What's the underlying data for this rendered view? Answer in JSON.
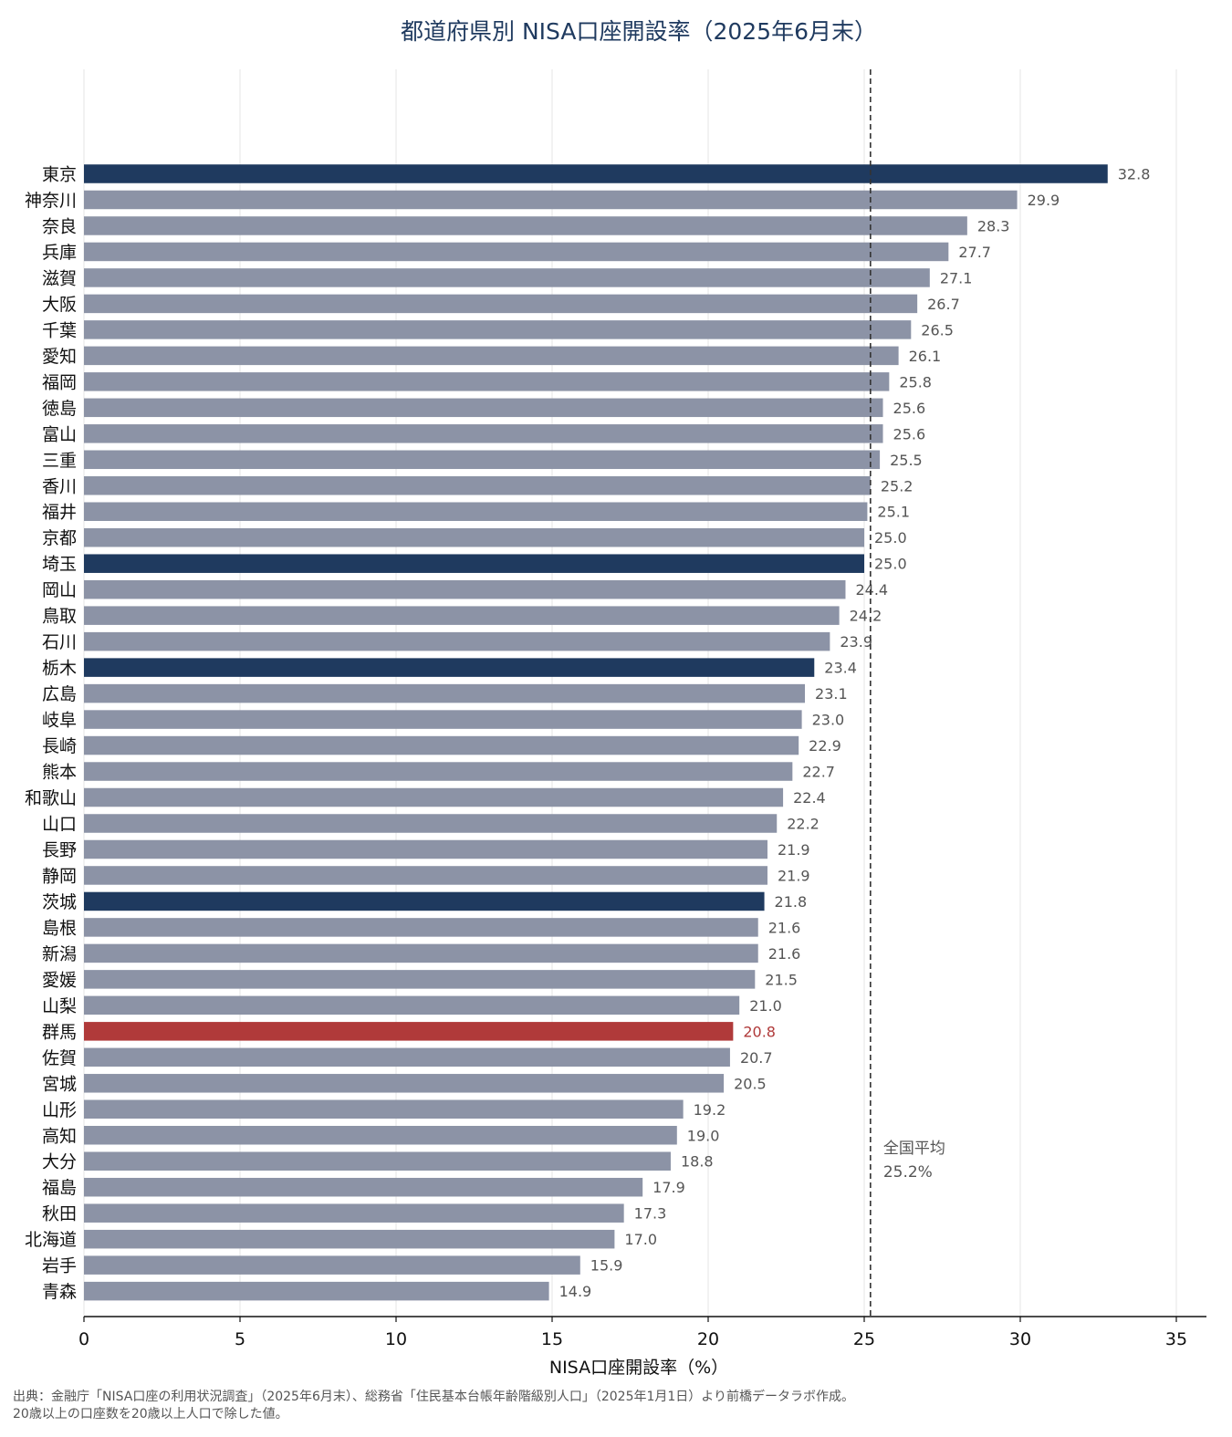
{
  "chart_data": {
    "type": "bar",
    "orientation": "horizontal",
    "title": "都道府県別 NISA口座開設率（2025年6月末）",
    "xlabel": "NISA口座開設率（%）",
    "ylabel": "",
    "xlim": [
      0,
      36
    ],
    "xticks": [
      0,
      5,
      10,
      15,
      20,
      25,
      30,
      35
    ],
    "grid": "vertical",
    "categories": [
      "東京",
      "神奈川",
      "奈良",
      "兵庫",
      "滋賀",
      "大阪",
      "千葉",
      "愛知",
      "福岡",
      "徳島",
      "富山",
      "三重",
      "香川",
      "福井",
      "京都",
      "埼玉",
      "岡山",
      "鳥取",
      "石川",
      "栃木",
      "広島",
      "岐阜",
      "長崎",
      "熊本",
      "和歌山",
      "山口",
      "長野",
      "静岡",
      "茨城",
      "島根",
      "新潟",
      "愛媛",
      "山梨",
      "群馬",
      "佐賀",
      "宮城",
      "山形",
      "高知",
      "大分",
      "福島",
      "秋田",
      "北海道",
      "岩手",
      "青森"
    ],
    "values": [
      32.8,
      29.9,
      28.3,
      27.7,
      27.1,
      26.7,
      26.5,
      26.1,
      25.8,
      25.6,
      25.6,
      25.5,
      25.2,
      25.1,
      25.0,
      25.0,
      24.4,
      24.2,
      23.9,
      23.4,
      23.1,
      23.0,
      22.9,
      22.7,
      22.4,
      22.2,
      21.9,
      21.9,
      21.8,
      21.6,
      21.6,
      21.5,
      21.0,
      20.8,
      20.7,
      20.5,
      19.2,
      19.0,
      18.8,
      17.9,
      17.3,
      17.0,
      15.9,
      14.9
    ],
    "value_labels": [
      "32.8",
      "29.9",
      "28.3",
      "27.7",
      "27.1",
      "26.7",
      "26.5",
      "26.1",
      "25.8",
      "25.6",
      "25.6",
      "25.5",
      "25.2",
      "25.1",
      "25.0",
      "25.0",
      "24.4",
      "24.2",
      "23.9",
      "23.4",
      "23.1",
      "23.0",
      "22.9",
      "22.7",
      "22.4",
      "22.2",
      "21.9",
      "21.9",
      "21.8",
      "21.6",
      "21.6",
      "21.5",
      "21.0",
      "20.8",
      "20.7",
      "20.5",
      "19.2",
      "19.0",
      "18.8",
      "17.9",
      "17.3",
      "17.0",
      "15.9",
      "14.9"
    ],
    "highlight_dark": [
      "東京",
      "埼玉",
      "栃木",
      "茨城"
    ],
    "highlight_red": [
      "群馬"
    ],
    "colors": {
      "default": "#8c93a6",
      "dark": "#1f3a5f",
      "red": "#b03a3a",
      "title": "#1f3a5f",
      "label_default": "#555555"
    },
    "reference_line": {
      "value": 25.2,
      "label_line1": "全国平均",
      "label_line2": "25.2%"
    }
  },
  "source_note": {
    "line1": "出典：金融庁「NISA口座の利用状況調査」（2025年6月末）、総務省「住民基本台帳年齢階級別人口」（2025年1月1日）より前橋データラボ作成。",
    "line2": "20歳以上の口座数を20歳以上人口で除した値。"
  }
}
